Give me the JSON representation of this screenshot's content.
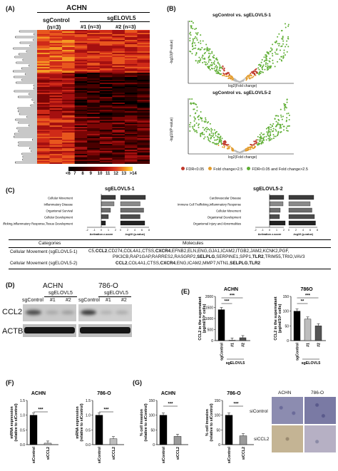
{
  "panels": {
    "A": "(A)",
    "B": "(B)",
    "C": "(C)",
    "D": "(D)",
    "E": "(E)",
    "F": "(F)",
    "G": "(G)"
  },
  "heatmap": {
    "title": "ACHN",
    "control_label": "sgControl",
    "control_n": "(n=3)",
    "group_label": "sgELOVL5",
    "sub1": "#1 (n=3)",
    "sub2": "#2 (n=3)",
    "scale_ticks": [
      "<6",
      "7",
      "8",
      "9",
      "10",
      "11",
      "12",
      "13",
      ">14"
    ]
  },
  "volcano": {
    "plot1_title": "sgControl vs. sgELOVL5-1",
    "plot2_title": "sgControl vs. sgELOVL5-2",
    "xlabel": "log2(Fold change)",
    "ylabel": "-log10(P-value)",
    "legend": [
      "FDR<0.05",
      "Fold change>2.5",
      "FDR<0.05 and Fold change>2.5"
    ],
    "colors": {
      "fdr": "#c0392b",
      "fold": "#e39b2b",
      "both": "#5fae34",
      "none": "#bbbbbb"
    }
  },
  "ipa": {
    "left_title": "sgELOVL5-1",
    "right_title": "sgELOVL5-2",
    "left_items": [
      "Cellular Movement",
      "Inflammatory Disease",
      "Organismal Survival",
      "Cellular Development",
      "Immune Cell Trafficking,Inflammatory Response,Tissue Development"
    ],
    "right_items": [
      "Cardiovascular Disease",
      "Immune Cell Trafficking,Inflammatory Response",
      "Cellular Movement",
      "Organismal Development",
      "Organismal Injury and Abnormalities"
    ],
    "xlabel_a": "Activation z-score",
    "xlabel_b": "-log10 (p-value)",
    "ticks_a": [
      "-2",
      "-1",
      "0",
      "1",
      "2"
    ],
    "ticks_b": [
      "0",
      "2",
      "4",
      "6",
      "8"
    ],
    "table_header_categories": "Categories",
    "table_header_molecules": "Molecules",
    "row1_category": "Cellular Movement (sgELOVL5-1)",
    "row1_mol_line1_a": "C5,",
    "row1_mol_line1_b": "CCL2",
    "row1_mol_line1_c": ",CD274,COL4A1,CTSS,",
    "row1_mol_line1_d": "CXCR4",
    "row1_mol_line1_e": ",EFNB2,ELN,ENG,GJA1,ICAM2,ITGB2,JAM2,KCNK2,PGF,",
    "row1_mol_line2_a": "PIK3CB,RAP1GAP,RARRES2,RASGRP2,",
    "row1_mol_line2_b": "SELPLG",
    "row1_mol_line2_c": ",SERPINE1,SPP1,",
    "row1_mol_line2_d": "TLR2",
    "row1_mol_line2_e": ",TRIM55,TRIO,VAV3",
    "row2_category": "Cellular Movement (sgELOVL5-2)",
    "row2_mol_a": "CCL2",
    "row2_mol_b": ",COL4A1,CTSS,",
    "row2_mol_c": "CXCR4",
    "row2_mol_d": ",ENG,ICAM2,MMP7,NTN1,",
    "row2_mol_e": "SELPLG",
    "row2_mol_f": ",",
    "row2_mol_g": "TLR2"
  },
  "western": {
    "cell1": "ACHN",
    "cell2": "786-O",
    "group": "sgELOVL5",
    "lane_control": "sgControl",
    "lane1": "#1",
    "lane2": "#2",
    "row1": "CCL2",
    "row2": "ACTB"
  },
  "elisa": {
    "title1": "ACHN",
    "title2": "786O",
    "ylabel": "CCL2 in the supernatant (pg/ml/10⁶ cells)",
    "categories": [
      "sgControl",
      "#1",
      "#2"
    ],
    "group_label": "sgELOVL5",
    "sig": [
      "***",
      "***",
      "**",
      "***"
    ],
    "ticks1": [
      "0",
      "500",
      "1000",
      "1500",
      "2000"
    ],
    "ticks2": [
      "0",
      "50",
      "100",
      "150"
    ]
  },
  "qpcr": {
    "title1": "ACHN",
    "title2": "786-O",
    "ylabel": "mRNA expression (relative to siControl)",
    "categories": [
      "siControl",
      "siCCL2"
    ],
    "sig": "***",
    "ticks": [
      "0.0",
      "0.5",
      "1.0",
      "1.5"
    ]
  },
  "invasion": {
    "title1": "ACHN",
    "title2": "786-O",
    "ylabel": "% cell invasion (relative to siControl)",
    "categories": [
      "siControl",
      "siCCL2"
    ],
    "sig": "***",
    "ticks": [
      "0",
      "50",
      "100",
      "150"
    ],
    "img_col1": "ACHN",
    "img_col2": "786-O",
    "img_row1": "siControl",
    "img_row2": "siCCL2"
  },
  "chart_data": [
    {
      "type": "bar",
      "title": "ACHN",
      "categories": [
        "sgControl",
        "#1",
        "#2"
      ],
      "values": [
        1400,
        20,
        130
      ],
      "ylim": [
        0,
        2000
      ],
      "ylabel": "CCL2 in the supernatant (pg/ml/10⁶ cells)",
      "xlabel": "sgELOVL5"
    },
    {
      "type": "bar",
      "title": "786O",
      "categories": [
        "sgControl",
        "#1",
        "#2"
      ],
      "values": [
        100,
        73,
        50
      ],
      "ylim": [
        0,
        150
      ],
      "ylabel": "CCL2 in the supernatant (pg/ml/10⁶ cells)",
      "xlabel": "sgELOVL5"
    },
    {
      "type": "bar",
      "title": "ACHN",
      "categories": [
        "siControl",
        "siCCL2"
      ],
      "values": [
        1.0,
        0.05
      ],
      "ylim": [
        0,
        1.5
      ],
      "ylabel": "mRNA expression (relative to siControl)"
    },
    {
      "type": "bar",
      "title": "786-O",
      "categories": [
        "siControl",
        "siCCL2"
      ],
      "values": [
        1.0,
        0.2
      ],
      "ylim": [
        0,
        1.5
      ],
      "ylabel": "mRNA expression (relative to siControl)"
    },
    {
      "type": "bar",
      "title": "ACHN",
      "categories": [
        "siControl",
        "siCCL2"
      ],
      "values": [
        100,
        28
      ],
      "ylim": [
        0,
        150
      ],
      "ylabel": "% cell invasion (relative to siControl)"
    },
    {
      "type": "bar",
      "title": "786-O",
      "categories": [
        "siControl",
        "siCCL2"
      ],
      "values": [
        100,
        30
      ],
      "ylim": [
        0,
        150
      ],
      "ylabel": "% cell invasion (relative to siControl)"
    },
    {
      "type": "bar",
      "title": "sgELOVL5-1",
      "categories": [
        "Cellular Movement",
        "Inflammatory Disease",
        "Organismal Survival",
        "Cellular Development",
        "Immune Cell Trafficking,Inflammatory Response,Tissue Development"
      ],
      "series": [
        {
          "name": "Activation z-score",
          "values": [
            2.0,
            1.8,
            1.3,
            1.0,
            0.6
          ]
        },
        {
          "name": "-log10 (p-value)",
          "values": [
            7.0,
            5.5,
            6.5,
            5.5,
            6.8
          ]
        }
      ]
    },
    {
      "type": "bar",
      "title": "sgELOVL5-2",
      "categories": [
        "Cardiovascular Disease",
        "Immune Cell Trafficking,Inflammatory Response",
        "Cellular Movement",
        "Organismal Development",
        "Organismal Injury and Abnormalities"
      ],
      "series": [
        {
          "name": "Activation z-score",
          "values": [
            2.0,
            1.9,
            1.5,
            1.4,
            2.2
          ]
        },
        {
          "name": "-log10 (p-value)",
          "values": [
            7.0,
            6.0,
            6.5,
            7.2,
            7.5
          ]
        }
      ]
    }
  ]
}
